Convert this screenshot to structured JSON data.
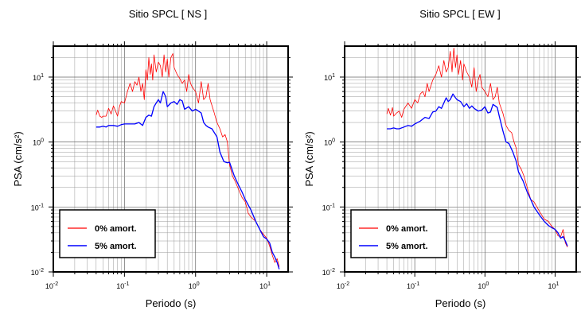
{
  "chart_data": [
    {
      "type": "line",
      "title": "Sitio SPCL [ NS ]",
      "xlabel": "Periodo (s)",
      "ylabel": "PSA (cm/s²)",
      "xscale": "log",
      "yscale": "log",
      "xlim": [
        0.01,
        20
      ],
      "ylim": [
        0.01,
        30
      ],
      "grid": true,
      "legend_position": "bottom-left",
      "xticks": [
        {
          "base": "10",
          "exp": "-2"
        },
        {
          "base": "10",
          "exp": "-1"
        },
        {
          "base": "10",
          "exp": "0"
        },
        {
          "base": "10",
          "exp": "1"
        }
      ],
      "yticks": [
        {
          "base": "10",
          "exp": "-2"
        },
        {
          "base": "10",
          "exp": "-1"
        },
        {
          "base": "10",
          "exp": "0"
        },
        {
          "base": "10",
          "exp": "1"
        }
      ],
      "series": [
        {
          "name": "0% amort.",
          "color": "#ff0000",
          "x": [
            0.04,
            0.042,
            0.045,
            0.048,
            0.05,
            0.055,
            0.06,
            0.065,
            0.07,
            0.075,
            0.08,
            0.085,
            0.09,
            0.1,
            0.11,
            0.12,
            0.13,
            0.14,
            0.15,
            0.16,
            0.17,
            0.18,
            0.19,
            0.2,
            0.21,
            0.22,
            0.23,
            0.24,
            0.25,
            0.26,
            0.28,
            0.3,
            0.32,
            0.34,
            0.36,
            0.38,
            0.4,
            0.42,
            0.45,
            0.48,
            0.5,
            0.55,
            0.6,
            0.65,
            0.7,
            0.75,
            0.8,
            0.85,
            0.9,
            1.0,
            1.1,
            1.2,
            1.3,
            1.4,
            1.5,
            1.6,
            1.8,
            2.0,
            2.2,
            2.4,
            2.6,
            2.8,
            3.0,
            3.3,
            3.6,
            4.0,
            4.5,
            5.0,
            5.5,
            6.0,
            7.0,
            8.0,
            9.0,
            10.0,
            11.0,
            12.0,
            13.0,
            14.0,
            15.0
          ],
          "values": [
            2.6,
            3.1,
            2.5,
            2.4,
            2.5,
            2.5,
            3.3,
            2.7,
            3.6,
            3.0,
            2.5,
            3.5,
            4.2,
            4.0,
            6.0,
            8.0,
            6.0,
            8.5,
            7.5,
            10.0,
            6.0,
            8.0,
            4.5,
            13.0,
            9.0,
            20.0,
            11.0,
            16.0,
            9.0,
            22.0,
            12.0,
            17.0,
            15.0,
            10.0,
            22.0,
            12.0,
            19.0,
            10.0,
            20.0,
            23.0,
            14.0,
            11.0,
            9.5,
            8.0,
            9.0,
            6.0,
            11.0,
            8.0,
            7.0,
            6.0,
            4.0,
            8.5,
            4.5,
            5.0,
            8.0,
            4.5,
            3.0,
            2.0,
            1.6,
            1.2,
            1.3,
            1.0,
            0.45,
            0.3,
            0.25,
            0.19,
            0.14,
            0.12,
            0.08,
            0.07,
            0.06,
            0.045,
            0.038,
            0.033,
            0.025,
            0.018,
            0.014,
            0.016,
            0.012
          ]
        },
        {
          "name": "5% amort.",
          "color": "#0000ff",
          "x": [
            0.04,
            0.045,
            0.05,
            0.055,
            0.06,
            0.07,
            0.08,
            0.09,
            0.1,
            0.12,
            0.14,
            0.16,
            0.18,
            0.2,
            0.22,
            0.24,
            0.26,
            0.28,
            0.3,
            0.32,
            0.35,
            0.38,
            0.4,
            0.45,
            0.5,
            0.55,
            0.6,
            0.65,
            0.7,
            0.8,
            0.9,
            1.0,
            1.1,
            1.2,
            1.3,
            1.4,
            1.5,
            1.7,
            2.0,
            2.2,
            2.5,
            2.8,
            3.0,
            3.5,
            4.0,
            4.5,
            5.0,
            6.0,
            7.0,
            8.0,
            9.0,
            10.0,
            11.0,
            12.0,
            13.0,
            14.0,
            15.0
          ],
          "values": [
            1.7,
            1.7,
            1.75,
            1.7,
            1.8,
            1.8,
            1.75,
            1.85,
            1.9,
            1.9,
            1.9,
            2.0,
            1.8,
            2.4,
            2.6,
            2.5,
            3.5,
            4.0,
            4.5,
            4.0,
            6.0,
            5.0,
            3.5,
            4.0,
            4.2,
            3.8,
            4.5,
            4.3,
            3.2,
            3.5,
            3.0,
            3.2,
            3.0,
            2.8,
            2.0,
            1.8,
            1.7,
            1.6,
            1.2,
            0.7,
            0.5,
            0.48,
            0.49,
            0.3,
            0.22,
            0.17,
            0.13,
            0.09,
            0.06,
            0.045,
            0.035,
            0.032,
            0.028,
            0.02,
            0.017,
            0.014,
            0.011
          ]
        }
      ]
    },
    {
      "type": "line",
      "title": "Sitio SPCL [ EW ]",
      "xlabel": "Periodo (s)",
      "ylabel": "PSA (cm/s²)",
      "xscale": "log",
      "yscale": "log",
      "xlim": [
        0.01,
        20
      ],
      "ylim": [
        0.01,
        30
      ],
      "grid": true,
      "legend_position": "bottom-left",
      "xticks": [
        {
          "base": "10",
          "exp": "-2"
        },
        {
          "base": "10",
          "exp": "-1"
        },
        {
          "base": "10",
          "exp": "0"
        },
        {
          "base": "10",
          "exp": "1"
        }
      ],
      "yticks": [
        {
          "base": "10",
          "exp": "-2"
        },
        {
          "base": "10",
          "exp": "-1"
        },
        {
          "base": "10",
          "exp": "0"
        },
        {
          "base": "10",
          "exp": "1"
        }
      ],
      "series": [
        {
          "name": "0% amort.",
          "color": "#ff0000",
          "x": [
            0.04,
            0.042,
            0.045,
            0.048,
            0.05,
            0.055,
            0.06,
            0.065,
            0.07,
            0.08,
            0.09,
            0.1,
            0.11,
            0.12,
            0.13,
            0.14,
            0.15,
            0.16,
            0.18,
            0.2,
            0.22,
            0.24,
            0.26,
            0.28,
            0.3,
            0.32,
            0.34,
            0.36,
            0.38,
            0.4,
            0.42,
            0.45,
            0.48,
            0.5,
            0.55,
            0.6,
            0.65,
            0.7,
            0.75,
            0.8,
            0.85,
            0.9,
            1.0,
            1.1,
            1.2,
            1.3,
            1.4,
            1.5,
            1.6,
            1.8,
            2.0,
            2.2,
            2.4,
            2.6,
            2.8,
            3.0,
            3.3,
            3.6,
            4.0,
            4.5,
            5.0,
            5.5,
            6.0,
            7.0,
            8.0,
            9.0,
            10.0,
            11.0,
            12.0,
            13.0,
            14.0,
            15.0
          ],
          "values": [
            2.7,
            3.3,
            2.6,
            3.4,
            2.5,
            2.8,
            3.0,
            2.4,
            3.2,
            4.0,
            3.3,
            4.5,
            4.0,
            5.5,
            6.0,
            5.0,
            8.0,
            6.0,
            9.0,
            11.0,
            15.0,
            10.0,
            18.0,
            12.0,
            14.0,
            25.0,
            12.0,
            28.0,
            14.0,
            22.0,
            11.0,
            18.0,
            9.0,
            16.0,
            12.0,
            10.0,
            7.0,
            14.0,
            6.0,
            9.0,
            11.0,
            7.0,
            6.0,
            5.0,
            8.0,
            4.5,
            5.0,
            7.0,
            4.0,
            2.8,
            1.8,
            1.5,
            1.4,
            1.0,
            0.8,
            0.45,
            0.38,
            0.3,
            0.2,
            0.13,
            0.12,
            0.1,
            0.085,
            0.065,
            0.06,
            0.05,
            0.045,
            0.036,
            0.035,
            0.045,
            0.028,
            0.024
          ]
        },
        {
          "name": "5% amort.",
          "color": "#0000ff",
          "x": [
            0.04,
            0.045,
            0.05,
            0.055,
            0.06,
            0.07,
            0.08,
            0.09,
            0.1,
            0.12,
            0.14,
            0.16,
            0.18,
            0.2,
            0.22,
            0.24,
            0.26,
            0.28,
            0.3,
            0.32,
            0.35,
            0.38,
            0.4,
            0.45,
            0.5,
            0.55,
            0.6,
            0.65,
            0.7,
            0.8,
            0.9,
            1.0,
            1.1,
            1.2,
            1.3,
            1.4,
            1.5,
            1.6,
            1.8,
            2.0,
            2.2,
            2.5,
            2.8,
            3.0,
            3.5,
            4.0,
            4.5,
            5.0,
            6.0,
            7.0,
            8.0,
            9.0,
            10.0,
            11.0,
            12.0,
            13.0,
            14.0,
            15.0
          ],
          "values": [
            1.6,
            1.6,
            1.65,
            1.6,
            1.6,
            1.7,
            1.8,
            1.75,
            1.9,
            2.1,
            2.4,
            2.3,
            2.9,
            3.0,
            3.5,
            3.3,
            4.0,
            4.8,
            4.2,
            4.5,
            5.5,
            4.8,
            4.5,
            4.2,
            3.5,
            3.9,
            3.3,
            3.6,
            3.3,
            3.0,
            3.1,
            3.5,
            2.8,
            2.9,
            3.8,
            3.6,
            3.4,
            2.5,
            1.5,
            1.0,
            0.95,
            0.7,
            0.5,
            0.35,
            0.25,
            0.17,
            0.13,
            0.1,
            0.075,
            0.06,
            0.052,
            0.048,
            0.045,
            0.04,
            0.033,
            0.035,
            0.03,
            0.025
          ]
        }
      ]
    }
  ]
}
